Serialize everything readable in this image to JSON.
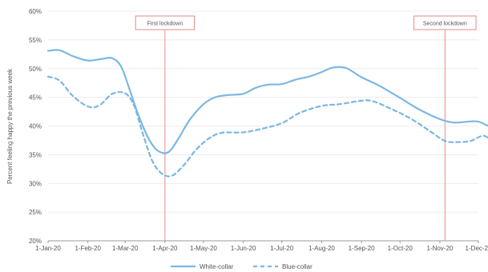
{
  "chart_data": {
    "type": "line",
    "title": "",
    "xlabel": "",
    "ylabel": "Percent feeling happy the previous week",
    "ylim": [
      20,
      60
    ],
    "y_ticks": [
      "20%",
      "25%",
      "30%",
      "35%",
      "40%",
      "45%",
      "50%",
      "55%",
      "60%"
    ],
    "x_ticks": [
      "1-Jan-20",
      "1-Feb-20",
      "1-Mar-20",
      "1-Apr-20",
      "1-May-20",
      "1-Jun-20",
      "1-Jul-20",
      "1-Aug-20",
      "1-Sep-20",
      "1-Oct-20",
      "1-Nov-20",
      "1-Dec-20"
    ],
    "grid": "horizontal",
    "legend_position": "bottom",
    "annotations": [
      {
        "label": "First lockdown",
        "x": "2020-04-01"
      },
      {
        "label": "Second lockdown",
        "x": "2020-11-05"
      }
    ],
    "series": [
      {
        "name": "White-collar",
        "style": "solid",
        "color": "#7cb7e3",
        "points": [
          [
            "2020-01-01",
            53.1
          ],
          [
            "2020-01-10",
            53.2
          ],
          [
            "2020-01-20",
            52.2
          ],
          [
            "2020-02-01",
            51.4
          ],
          [
            "2020-02-12",
            51.7
          ],
          [
            "2020-02-20",
            51.8
          ],
          [
            "2020-02-27",
            50.3
          ],
          [
            "2020-03-05",
            46.0
          ],
          [
            "2020-03-12",
            41.5
          ],
          [
            "2020-03-20",
            37.5
          ],
          [
            "2020-03-27",
            35.6
          ],
          [
            "2020-04-04",
            35.5
          ],
          [
            "2020-04-12",
            38.0
          ],
          [
            "2020-04-20",
            41.0
          ],
          [
            "2020-05-01",
            43.8
          ],
          [
            "2020-05-10",
            45.0
          ],
          [
            "2020-05-20",
            45.4
          ],
          [
            "2020-06-01",
            45.6
          ],
          [
            "2020-06-10",
            46.6
          ],
          [
            "2020-06-20",
            47.2
          ],
          [
            "2020-07-01",
            47.3
          ],
          [
            "2020-07-12",
            48.1
          ],
          [
            "2020-07-22",
            48.6
          ],
          [
            "2020-08-01",
            49.4
          ],
          [
            "2020-08-10",
            50.2
          ],
          [
            "2020-08-20",
            50.1
          ],
          [
            "2020-09-01",
            48.5
          ],
          [
            "2020-09-15",
            47.0
          ],
          [
            "2020-10-01",
            44.9
          ],
          [
            "2020-10-15",
            43.0
          ],
          [
            "2020-11-01",
            41.2
          ],
          [
            "2020-11-12",
            40.6
          ],
          [
            "2020-11-25",
            40.8
          ],
          [
            "2020-12-02",
            40.7
          ],
          [
            "2020-12-12",
            39.6
          ]
        ]
      },
      {
        "name": "Blue-collar",
        "style": "dashed",
        "color": "#7cb7e3",
        "points": [
          [
            "2020-01-01",
            48.6
          ],
          [
            "2020-01-10",
            47.9
          ],
          [
            "2020-01-20",
            45.3
          ],
          [
            "2020-02-01",
            43.4
          ],
          [
            "2020-02-10",
            43.6
          ],
          [
            "2020-02-20",
            45.6
          ],
          [
            "2020-03-01",
            45.7
          ],
          [
            "2020-03-08",
            43.5
          ],
          [
            "2020-03-15",
            38.5
          ],
          [
            "2020-03-22",
            34.0
          ],
          [
            "2020-03-29",
            31.8
          ],
          [
            "2020-04-06",
            31.3
          ],
          [
            "2020-04-15",
            33.0
          ],
          [
            "2020-04-25",
            35.8
          ],
          [
            "2020-05-05",
            37.8
          ],
          [
            "2020-05-15",
            38.8
          ],
          [
            "2020-06-01",
            38.9
          ],
          [
            "2020-06-15",
            39.5
          ],
          [
            "2020-07-01",
            40.5
          ],
          [
            "2020-07-15",
            42.3
          ],
          [
            "2020-08-01",
            43.5
          ],
          [
            "2020-08-15",
            43.8
          ],
          [
            "2020-09-01",
            44.4
          ],
          [
            "2020-09-10",
            44.3
          ],
          [
            "2020-09-25",
            42.9
          ],
          [
            "2020-10-10",
            41.2
          ],
          [
            "2020-10-25",
            39.0
          ],
          [
            "2020-11-05",
            37.4
          ],
          [
            "2020-11-15",
            37.2
          ],
          [
            "2020-11-25",
            37.4
          ],
          [
            "2020-12-05",
            38.3
          ],
          [
            "2020-12-12",
            37.2
          ]
        ]
      }
    ],
    "colors": {
      "line": "#7cb7e3",
      "annotation": "#e88a8a",
      "grid": "#e6e6e6",
      "text": "#555555"
    }
  }
}
